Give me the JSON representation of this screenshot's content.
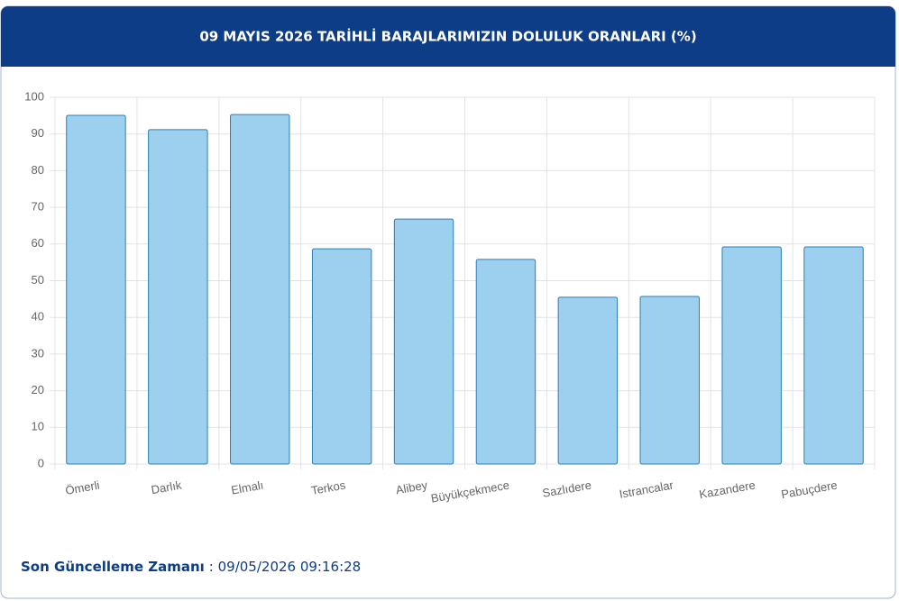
{
  "chart_data": {
    "type": "bar",
    "title": "09 MAYIS 2026 TARİHLİ BARAJLARIMIZIN DOLULUK ORANLARI (%)",
    "categories": [
      "Ömerli",
      "Darlık",
      "Elmalı",
      "Terkos",
      "Alibey",
      "Büyükçekmece",
      "Sazlıdere",
      "Istrancalar",
      "Kazandere",
      "Pabuçdere"
    ],
    "values": [
      95.1,
      91.2,
      95.3,
      58.7,
      66.8,
      55.8,
      45.5,
      45.7,
      59.2,
      59.2
    ],
    "color": "#9dd0ee",
    "ylim": [
      0,
      100
    ],
    "yticks": [
      0,
      10,
      20,
      30,
      40,
      50,
      60,
      70,
      80,
      90,
      100
    ],
    "grid": true
  },
  "footer": {
    "label": "Son Güncelleme Zamanı",
    "value": ": 09/05/2026 09:16:28"
  }
}
